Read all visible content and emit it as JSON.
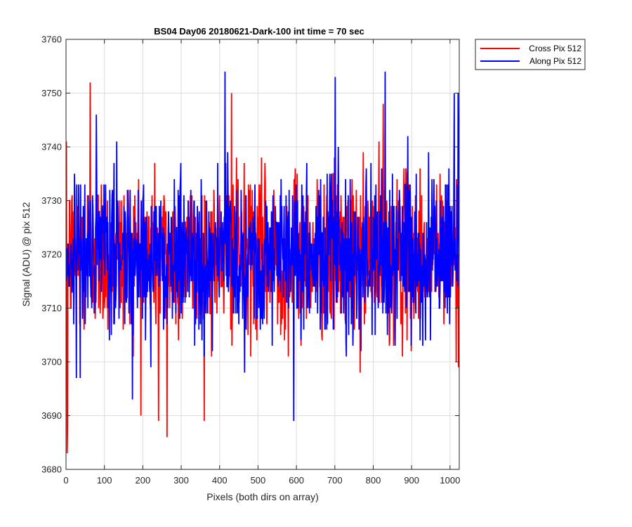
{
  "chart_data": {
    "type": "line",
    "title": "BS04 Day06 20180621-Dark-100 int time = 70 sec",
    "xlabel": "Pixels (both dirs on array)",
    "ylabel": "Signal (ADU) @ pix 512",
    "xlim": [
      0,
      1024
    ],
    "ylim": [
      3680,
      3760
    ],
    "xticks": [
      0,
      100,
      200,
      300,
      400,
      500,
      600,
      700,
      800,
      900,
      1000
    ],
    "yticks": [
      3680,
      3690,
      3700,
      3710,
      3720,
      3730,
      3740,
      3750,
      3760
    ],
    "xtick_labels": [
      "0",
      "100",
      "200",
      "300",
      "400",
      "500",
      "600",
      "700",
      "800",
      "900",
      "1000"
    ],
    "ytick_labels": [
      "3680",
      "3690",
      "3700",
      "3710",
      "3720",
      "3730",
      "3740",
      "3750",
      "3760"
    ],
    "grid": true,
    "legend_position": "outside-top-right",
    "series": [
      {
        "name": "Cross Pix 512",
        "color": "#ff0000",
        "n_points": 1024,
        "mean": 3720,
        "approx_range": [
          3683,
          3752
        ],
        "notable_points": [
          {
            "x": 2,
            "y": 3683
          },
          {
            "x": 3,
            "y": 3688
          },
          {
            "x": 62,
            "y": 3752
          },
          {
            "x": 240,
            "y": 3689
          },
          {
            "x": 262,
            "y": 3686
          },
          {
            "x": 430,
            "y": 3750
          },
          {
            "x": 825,
            "y": 3748
          },
          {
            "x": 1015,
            "y": 3700
          }
        ]
      },
      {
        "name": "Along Pix 512",
        "color": "#0000ff",
        "n_points": 1024,
        "mean": 3720,
        "approx_range": [
          3689,
          3754
        ],
        "notable_points": [
          {
            "x": 413,
            "y": 3754
          },
          {
            "x": 592,
            "y": 3689
          },
          {
            "x": 700,
            "y": 3753
          },
          {
            "x": 830,
            "y": 3754
          },
          {
            "x": 1010,
            "y": 3750
          },
          {
            "x": 1020,
            "y": 3750
          }
        ]
      }
    ]
  }
}
